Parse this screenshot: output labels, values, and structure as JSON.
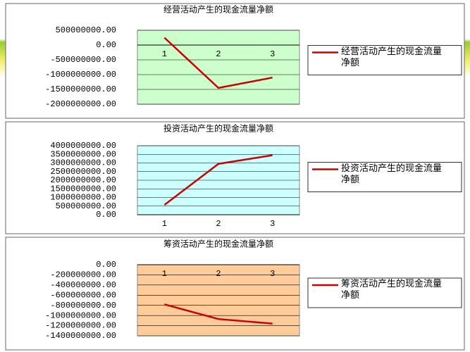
{
  "chart_data": [
    {
      "type": "line",
      "title": "经营活动产生的现金流量净额",
      "categories": [
        "1",
        "2",
        "3"
      ],
      "series": [
        {
          "name": "经营活动产生的现金流量净额",
          "color": "#cc0000",
          "values": [
            250000000,
            -1450000000,
            -1100000000
          ]
        }
      ],
      "ylim": [
        -2000000000,
        500000000
      ],
      "yticks": [
        {
          "value": 500000000,
          "label": "500000000.00"
        },
        {
          "value": 0,
          "label": "0.00"
        },
        {
          "value": -500000000,
          "label": "-500000000.00"
        },
        {
          "value": -1000000000,
          "label": "-1000000000.00"
        },
        {
          "value": -1500000000,
          "label": "-1500000000.00"
        },
        {
          "value": -2000000000,
          "label": "-2000000000.00"
        }
      ],
      "grid": true,
      "legend": "right",
      "background": "#ccffcc"
    },
    {
      "type": "line",
      "title": "投资活动产生的现金流量净额",
      "categories": [
        "1",
        "2",
        "3"
      ],
      "series": [
        {
          "name": "投资活动产生的现金流量净额",
          "color": "#cc0000",
          "values": [
            570000000,
            2950000000,
            3450000000
          ]
        }
      ],
      "ylim": [
        0,
        4000000000
      ],
      "yticks": [
        {
          "value": 4000000000,
          "label": "4000000000.00"
        },
        {
          "value": 3500000000,
          "label": "3500000000.00"
        },
        {
          "value": 3000000000,
          "label": "3000000000.00"
        },
        {
          "value": 2500000000,
          "label": "2500000000.00"
        },
        {
          "value": 2000000000,
          "label": "2000000000.00"
        },
        {
          "value": 1500000000,
          "label": "1500000000.00"
        },
        {
          "value": 1000000000,
          "label": "1000000000.00"
        },
        {
          "value": 500000000,
          "label": "500000000.00"
        },
        {
          "value": 0,
          "label": "0.00"
        }
      ],
      "grid": true,
      "legend": "right",
      "background": "#ccffff"
    },
    {
      "type": "line",
      "title": "筹资活动产生的现金流量净额",
      "categories": [
        "1",
        "2",
        "3"
      ],
      "series": [
        {
          "name": "筹资活动产生的现金流量净额",
          "color": "#cc0000",
          "values": [
            -780000000,
            -1070000000,
            -1160000000
          ]
        }
      ],
      "ylim": [
        -1400000000,
        0
      ],
      "yticks": [
        {
          "value": 0,
          "label": "0.00"
        },
        {
          "value": -200000000,
          "label": "-200000000.00"
        },
        {
          "value": -400000000,
          "label": "-400000000.00"
        },
        {
          "value": -600000000,
          "label": "-600000000.00"
        },
        {
          "value": -800000000,
          "label": "-800000000.00"
        },
        {
          "value": -1000000000,
          "label": "-1000000000.00"
        },
        {
          "value": -1200000000,
          "label": "-1200000000.00"
        },
        {
          "value": -1400000000,
          "label": "-1400000000.00"
        }
      ],
      "grid": true,
      "legend": "right",
      "background": "#ffcc99"
    }
  ]
}
